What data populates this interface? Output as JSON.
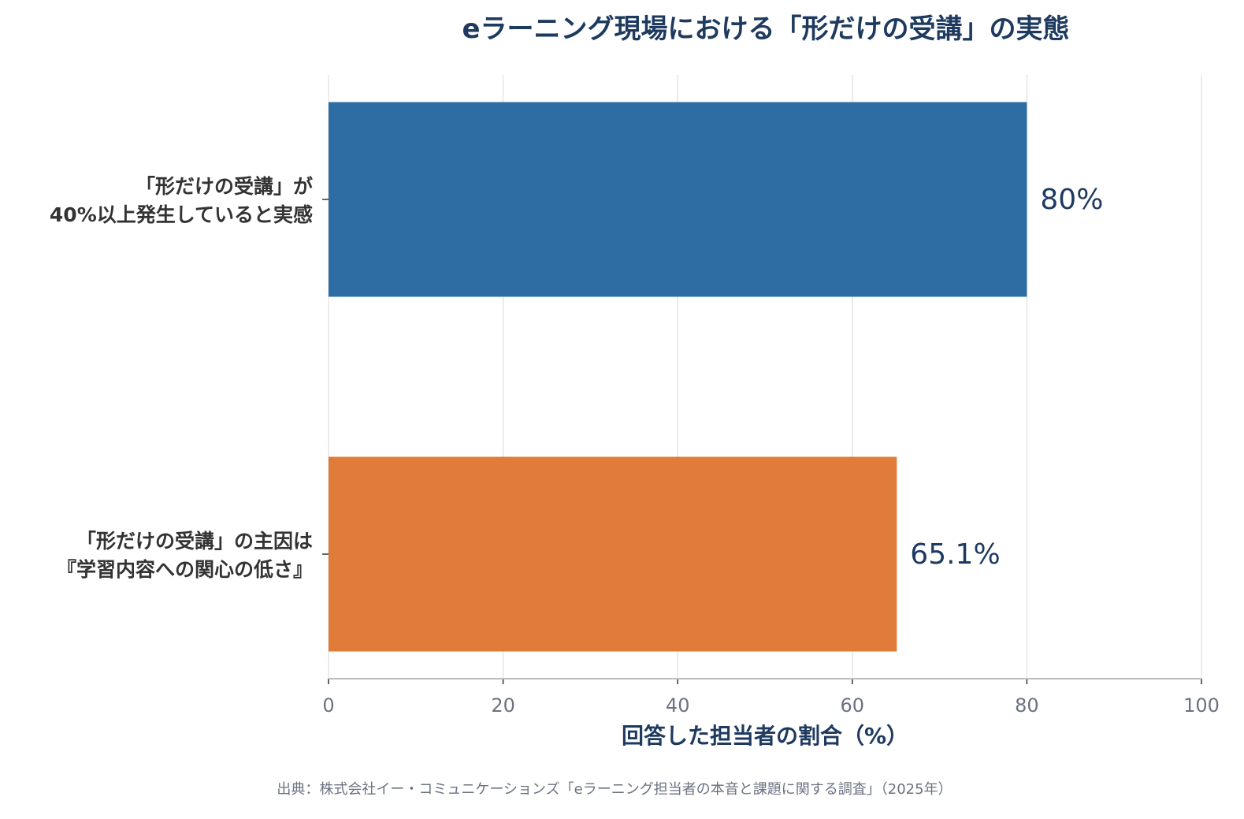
{
  "chart_data": {
    "type": "bar",
    "orientation": "horizontal",
    "title": "eラーニング現場における「形だけの受講」の実態",
    "categories": [
      [
        "「形だけの受講」が",
        "40%以上発生していると実感"
      ],
      [
        "「形だけの受講」の主因は",
        "『学習内容への関心の低さ』"
      ]
    ],
    "values": [
      80,
      65.1
    ],
    "value_labels": [
      "80%",
      "65.1%"
    ],
    "colors": [
      "#2e6da4",
      "#e07b39"
    ],
    "xlabel": "回答した担当者の割合（%）",
    "ylabel": "",
    "xlim": [
      0,
      100
    ],
    "xticks": [
      0,
      20,
      40,
      60,
      80,
      100
    ],
    "grid": true,
    "legend": "none",
    "source": "出典：株式会社イー・コミュニケーションズ「eラーニング担当者の本音と課題に関する調査」（2025年）"
  }
}
